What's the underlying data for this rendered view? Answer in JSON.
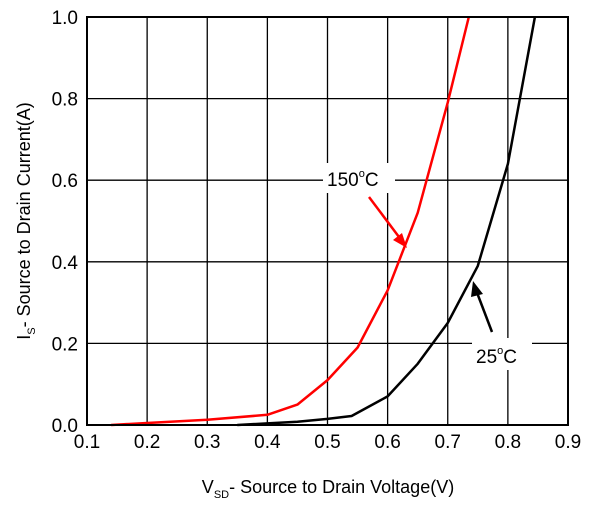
{
  "chart_data": {
    "type": "line",
    "xlabel": {
      "main": "V",
      "sub": "SD",
      "rest": "- Source to Drain Voltage(V)"
    },
    "ylabel": {
      "main": "I",
      "sub": "S",
      "rest": "- Source to Drain Current(A)"
    },
    "xlim": [
      0.1,
      0.9
    ],
    "ylim": [
      0.0,
      1.0
    ],
    "x_ticks": [
      "0.1",
      "0.2",
      "0.3",
      "0.4",
      "0.5",
      "0.6",
      "0.7",
      "0.8",
      "0.9"
    ],
    "y_ticks": [
      "0.0",
      "0.2",
      "0.4",
      "0.6",
      "0.8",
      "1.0"
    ],
    "grid": true,
    "series": [
      {
        "name": "150°C",
        "color": "#ff0000",
        "points": [
          [
            0.14,
            0.0
          ],
          [
            0.2,
            0.005
          ],
          [
            0.3,
            0.013
          ],
          [
            0.4,
            0.025
          ],
          [
            0.45,
            0.05
          ],
          [
            0.5,
            0.11
          ],
          [
            0.55,
            0.19
          ],
          [
            0.6,
            0.33
          ],
          [
            0.65,
            0.52
          ],
          [
            0.7,
            0.79
          ],
          [
            0.735,
            1.0
          ]
        ]
      },
      {
        "name": "25°C",
        "color": "#000000",
        "points": [
          [
            0.35,
            0.0
          ],
          [
            0.4,
            0.004
          ],
          [
            0.45,
            0.008
          ],
          [
            0.5,
            0.015
          ],
          [
            0.54,
            0.022
          ],
          [
            0.6,
            0.07
          ],
          [
            0.65,
            0.15
          ],
          [
            0.7,
            0.25
          ],
          [
            0.75,
            0.39
          ],
          [
            0.8,
            0.64
          ],
          [
            0.845,
            1.0
          ]
        ]
      }
    ],
    "annotations": [
      {
        "text_main": "150",
        "text_sup": "o",
        "text_rest": "C",
        "series": "150°C"
      },
      {
        "text_main": "25",
        "text_sup": "o",
        "text_rest": "C",
        "series": "25°C"
      }
    ]
  }
}
